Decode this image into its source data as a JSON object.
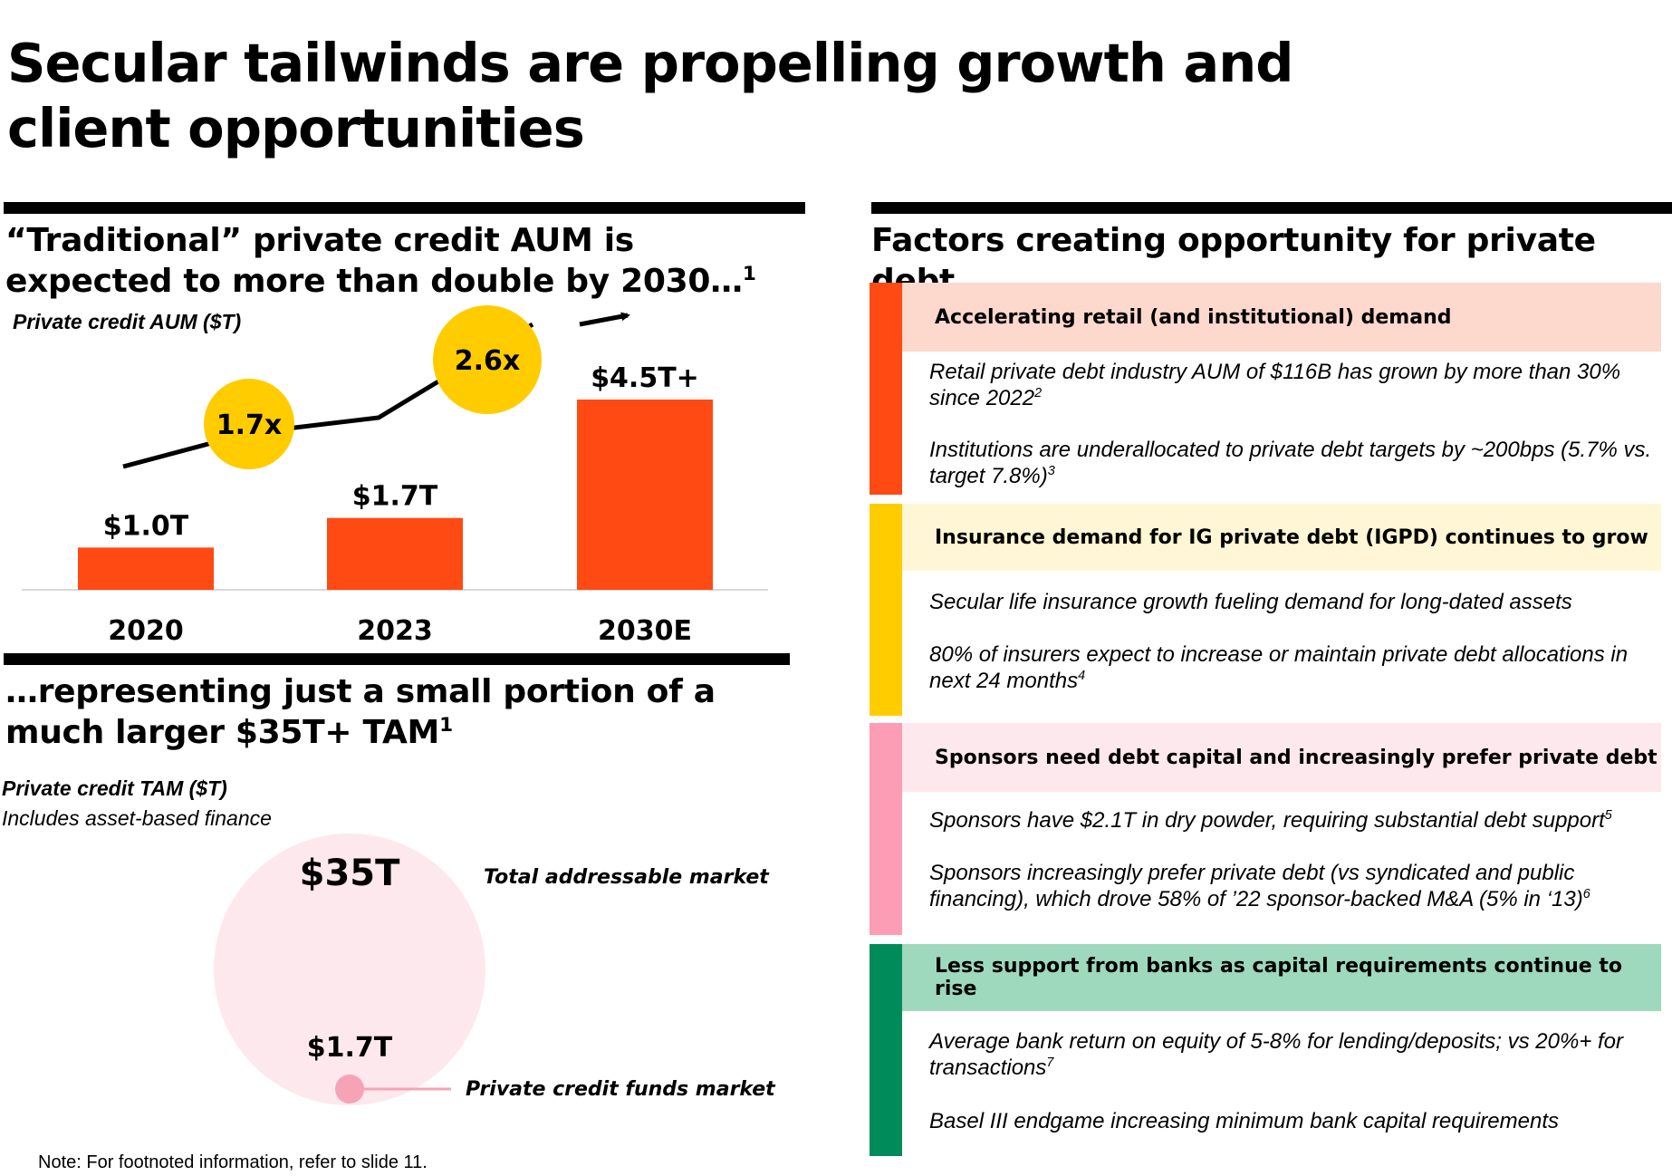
{
  "title": "Secular tailwinds are propelling growth and client opportunities",
  "left_top": {
    "heading": "“Traditional” private credit AUM is expected to more than double by 2030…",
    "heading_sup": "1",
    "axis_title": "Private credit AUM ($T)"
  },
  "chart_data": [
    {
      "type": "bar",
      "title": "Private credit AUM ($T)",
      "categories": [
        "2020",
        "2023",
        "2030E"
      ],
      "values": [
        1.0,
        1.7,
        4.5
      ],
      "value_labels": [
        "$1.0T",
        "$1.7T",
        "$4.5T+"
      ],
      "growth_multiples": [
        "1.7x",
        "2.6x"
      ],
      "ylim": [
        0,
        4.5
      ],
      "xlabel": "",
      "ylabel": ""
    },
    {
      "type": "bubble",
      "title": "Private credit TAM ($T)",
      "series": [
        {
          "name": "Total addressable market",
          "value": 35,
          "label": "$35T"
        },
        {
          "name": "Private credit funds market",
          "value": 1.7,
          "label": "$1.7T"
        }
      ]
    }
  ],
  "left_bottom": {
    "heading": "…representing just a small portion of a much larger $35T+ TAM",
    "heading_sup": "1",
    "axis_title": "Private credit TAM ($T)",
    "subtitle": "Includes asset-based finance"
  },
  "right": {
    "heading": "Factors creating opportunity for private debt",
    "factors": [
      {
        "title": "Accelerating retail (and institutional) demand",
        "bar_color": "#ff4a14",
        "bg_color": "#fdd8cc",
        "points": [
          {
            "text": "Retail private debt industry AUM of $116B has grown by more than 30% since 2022",
            "sup": "2"
          },
          {
            "text": "Institutions are underallocated to private debt targets by ~200bps (5.7% vs. target 7.8%)",
            "sup": "3"
          }
        ]
      },
      {
        "title": "Insurance demand for IG private debt (IGPD) continues to grow",
        "bar_color": "#ffcc00",
        "bg_color": "#fef6d4",
        "points": [
          {
            "text": "Secular life insurance growth fueling demand for long-dated assets",
            "sup": ""
          },
          {
            "text": "80% of insurers expect to increase or maintain private debt allocations in next 24 months",
            "sup": "4"
          }
        ]
      },
      {
        "title": "Sponsors need debt capital and increasingly prefer private debt",
        "bar_color": "#fd9db5",
        "bg_color": "#fde8ed",
        "points": [
          {
            "text": "Sponsors have $2.1T in dry powder, requiring substantial debt support",
            "sup": "5"
          },
          {
            "text": "Sponsors increasingly prefer private debt (vs syndicated and public financing), which drove 58% of ’22 sponsor-backed M&A (5% in ‘13)",
            "sup": "6"
          }
        ]
      },
      {
        "title": "Less support from banks as capital requirements continue to rise",
        "bar_color": "#008c5a",
        "bg_color": "#9ed8bd",
        "points": [
          {
            "text": "Average bank return on equity of 5-8% for lending/deposits; vs 20%+ for transactions",
            "sup": "7"
          },
          {
            "text": "Basel III endgame increasing minimum bank capital requirements",
            "sup": ""
          }
        ]
      }
    ]
  },
  "footer_note": "Note: For footnoted information, refer to slide 11.",
  "colors": {
    "bar": "#ff4a14",
    "multiple_circle": "#ffcc00",
    "tam_circle": "#fde8ed",
    "funds_dot": "#f7a3b7"
  }
}
